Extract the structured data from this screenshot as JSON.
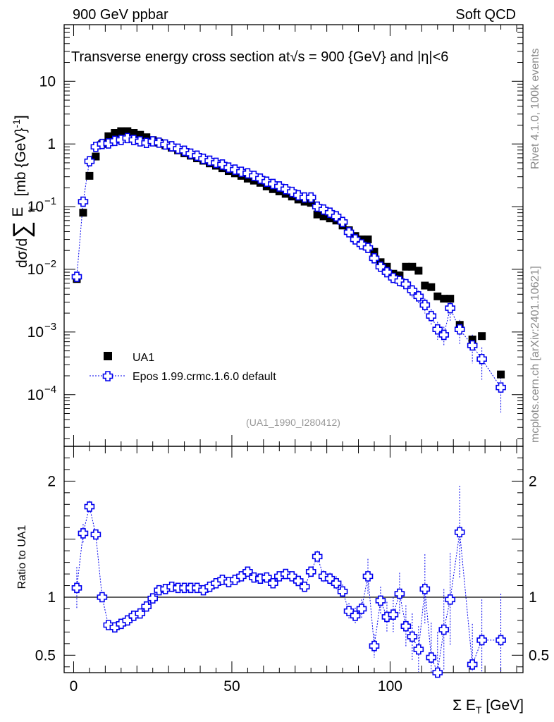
{
  "header": {
    "left": "900 GeV ppbar",
    "right": "Soft QCD"
  },
  "side_labels": {
    "rivet": "Rivet 4.1.0,  100k events",
    "mcplots": "mcplots.cern.ch [arXiv:2401.10621]"
  },
  "colors": {
    "data": "#000000",
    "mc": "#0000ee"
  },
  "chart_data": [
    {
      "type": "scatter",
      "title": "Transverse energy cross section at √s = 900 {GeV} and |η|<6",
      "title_parts": {
        "pre": "Transverse energy cross section at",
        "sqrt": "√s",
        "post": " = 900 {GeV} and |η|<6"
      },
      "ylabel": "dσ/d∑ E_T [mb {GeV}^-1]",
      "ylabel_parts": {
        "pre": "dσ/d",
        "sum": "∑",
        "E": "E",
        "T": "T",
        "unit": "[mb {GeV}",
        "exp": "-1",
        "close": "]"
      },
      "xlabel": "",
      "yscale": "log",
      "xlim": [
        -3,
        142
      ],
      "ylim": [
        1.5e-05,
        80
      ],
      "yticks": [
        {
          "value": 0.0001,
          "base": "10",
          "exp": "−4"
        },
        {
          "value": 0.001,
          "base": "10",
          "exp": "−3"
        },
        {
          "value": 0.01,
          "base": "10",
          "exp": "−2"
        },
        {
          "value": 0.1,
          "base": "10",
          "exp": "−1"
        },
        {
          "value": 1,
          "base": "1",
          "exp": ""
        },
        {
          "value": 10,
          "base": "10",
          "exp": ""
        }
      ],
      "reference_label": "(UA1_1990_I280412)",
      "legend": [
        {
          "name": "UA1",
          "marker": "square"
        },
        {
          "name": "Epos 1.99.crmc.1.6.0 default",
          "marker": "cross"
        }
      ],
      "legend_position": "lower-left",
      "series": [
        {
          "name": "UA1",
          "x": [
            1,
            3,
            5,
            7,
            9,
            11,
            13,
            15,
            17,
            19,
            21,
            23,
            25,
            27,
            29,
            31,
            33,
            35,
            37,
            39,
            41,
            43,
            45,
            47,
            49,
            51,
            53,
            55,
            57,
            59,
            61,
            63,
            65,
            67,
            69,
            71,
            73,
            75,
            77,
            79,
            81,
            83,
            85,
            87,
            89,
            91,
            93,
            95,
            97,
            99,
            101,
            103,
            105,
            107,
            109,
            111,
            113,
            115,
            117,
            119,
            122,
            126,
            129,
            135
          ],
          "values": [
            0.007,
            0.08,
            0.31,
            0.63,
            1.0,
            1.33,
            1.5,
            1.6,
            1.6,
            1.5,
            1.4,
            1.28,
            1.15,
            1.05,
            0.95,
            0.87,
            0.79,
            0.71,
            0.65,
            0.59,
            0.54,
            0.49,
            0.45,
            0.41,
            0.37,
            0.34,
            0.31,
            0.28,
            0.26,
            0.24,
            0.21,
            0.19,
            0.175,
            0.16,
            0.145,
            0.13,
            0.12,
            0.115,
            0.075,
            0.07,
            0.065,
            0.06,
            0.05,
            0.042,
            0.034,
            0.03,
            0.03,
            0.019,
            0.013,
            0.011,
            0.0085,
            0.008,
            0.011,
            0.011,
            0.0095,
            0.0055,
            0.0052,
            0.0037,
            0.0034,
            0.0034,
            0.0013,
            0.00076,
            0.00086,
            0.00021
          ]
        },
        {
          "name": "Epos 1.99.crmc.1.6.0 default",
          "x": [
            1,
            3,
            5,
            7,
            9,
            11,
            13,
            15,
            17,
            19,
            21,
            23,
            25,
            27,
            29,
            31,
            33,
            35,
            37,
            39,
            41,
            43,
            45,
            47,
            49,
            51,
            53,
            55,
            57,
            59,
            61,
            63,
            65,
            67,
            69,
            71,
            73,
            75,
            77,
            79,
            81,
            83,
            85,
            87,
            89,
            91,
            93,
            95,
            97,
            99,
            101,
            103,
            105,
            107,
            109,
            111,
            113,
            115,
            117,
            119,
            122,
            126,
            129,
            135
          ],
          "values": [
            0.0076,
            0.12,
            0.53,
            0.9,
            1.0,
            1.02,
            1.12,
            1.16,
            1.24,
            1.16,
            1.1,
            1.04,
            1.1,
            1.05,
            0.98,
            0.92,
            0.84,
            0.78,
            0.7,
            0.65,
            0.58,
            0.54,
            0.5,
            0.47,
            0.42,
            0.39,
            0.36,
            0.34,
            0.31,
            0.28,
            0.25,
            0.23,
            0.21,
            0.19,
            0.172,
            0.152,
            0.14,
            0.14,
            0.1,
            0.09,
            0.08,
            0.07,
            0.057,
            0.039,
            0.03,
            0.025,
            0.022,
            0.015,
            0.011,
            0.009,
            0.0073,
            0.0065,
            0.0058,
            0.0046,
            0.0037,
            0.0027,
            0.0018,
            0.0011,
            0.0009,
            0.0024,
            0.0011,
            0.00061,
            0.00037,
            0.00013
          ]
        }
      ]
    },
    {
      "type": "scatter",
      "xlabel": "Σ E_T [GeV]",
      "xlabel_parts": {
        "pre": "Σ E",
        "sub": "T",
        "post": " [GeV]"
      },
      "ylabel": "Ratio to UA1",
      "xlim": [
        -3,
        142
      ],
      "ylim": [
        0.35,
        2.3
      ],
      "xticks": [
        0,
        50,
        100
      ],
      "yticks": [
        0.5,
        1,
        2
      ],
      "reference_line": 1,
      "series": [
        {
          "name": "Epos 1.99.crmc.1.6.0 default / UA1",
          "x": [
            1,
            3,
            5,
            7,
            9,
            11,
            13,
            15,
            17,
            19,
            21,
            23,
            25,
            27,
            29,
            31,
            33,
            35,
            37,
            39,
            41,
            43,
            45,
            47,
            49,
            51,
            53,
            55,
            57,
            59,
            61,
            63,
            65,
            67,
            69,
            71,
            73,
            75,
            77,
            79,
            81,
            83,
            85,
            87,
            89,
            91,
            93,
            95,
            97,
            99,
            101,
            103,
            105,
            107,
            109,
            111,
            113,
            115,
            117,
            119,
            122,
            126,
            129,
            135
          ],
          "values": [
            1.08,
            1.55,
            1.78,
            1.54,
            1.0,
            0.76,
            0.74,
            0.77,
            0.8,
            0.84,
            0.86,
            0.92,
            0.99,
            1.06,
            1.07,
            1.09,
            1.08,
            1.08,
            1.08,
            1.08,
            1.06,
            1.09,
            1.12,
            1.15,
            1.13,
            1.15,
            1.18,
            1.22,
            1.17,
            1.16,
            1.17,
            1.12,
            1.18,
            1.2,
            1.18,
            1.14,
            1.09,
            1.22,
            1.35,
            1.18,
            1.16,
            1.12,
            1.05,
            0.88,
            0.84,
            0.9,
            1.18,
            0.58,
            0.97,
            0.83,
            0.85,
            1.03,
            0.75,
            0.66,
            0.55,
            1.07,
            0.48,
            0.35,
            0.72,
            0.98,
            1.56,
            0.42,
            0.63,
            0.63
          ],
          "errors": [
            0.18,
            0.08,
            0.05,
            0.04,
            0.03,
            0.02,
            0.02,
            0.02,
            0.02,
            0.02,
            0.02,
            0.02,
            0.02,
            0.02,
            0.02,
            0.02,
            0.02,
            0.02,
            0.02,
            0.02,
            0.02,
            0.02,
            0.02,
            0.02,
            0.02,
            0.02,
            0.02,
            0.02,
            0.02,
            0.03,
            0.03,
            0.03,
            0.03,
            0.03,
            0.03,
            0.03,
            0.04,
            0.04,
            0.05,
            0.05,
            0.05,
            0.06,
            0.06,
            0.07,
            0.07,
            0.08,
            0.15,
            0.1,
            0.12,
            0.13,
            0.15,
            0.18,
            0.18,
            0.2,
            0.2,
            0.3,
            0.3,
            0.35,
            0.35,
            0.4,
            0.4,
            0.35,
            0.35,
            0.4
          ]
        }
      ]
    }
  ]
}
